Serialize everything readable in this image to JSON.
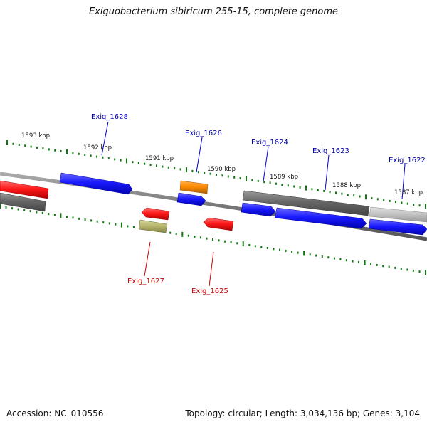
{
  "title": "Exiguobacterium sibiricum 255-15, complete genome",
  "footer": {
    "accession": "Accession: NC_010556",
    "info": "Topology: circular; Length: 3,034,136 bp; Genes: 3,104"
  },
  "colors": {
    "forward_gene": "#1a1aff",
    "reverse_gene": "#ff1a1a",
    "label_forward": "#0000aa",
    "label_reverse": "#cc0000",
    "tick": "#117711",
    "backbone": "#808080"
  },
  "scale_labels": [
    "1593 kbp",
    "1592 kbp",
    "1591 kbp",
    "1590 kbp",
    "1589 kbp",
    "1588 kbp",
    "1587 kbp"
  ],
  "gene_labels": {
    "exig_1628": "Exig_1628",
    "exig_1626": "Exig_1626",
    "exig_1624": "Exig_1624",
    "exig_1623": "Exig_1623",
    "exig_1622": "Exig_1622",
    "exig_1627": "Exig_1627",
    "exig_1625": "Exig_1625"
  }
}
